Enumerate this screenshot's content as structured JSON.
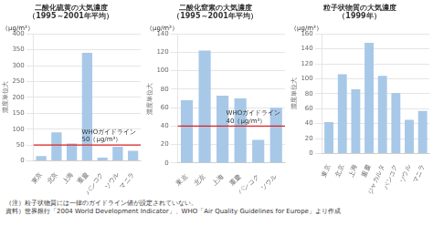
{
  "chart_data": [
    {
      "type": "bar",
      "title": [
        "二酸化硫黄の大気濃度",
        "（1995～2001年平均）"
      ],
      "y_label": "濃度単位大",
      "units": "（μg/m³）",
      "categories": [
        "東京",
        "北京",
        "上海",
        "重慶",
        "バンコク",
        "ソウル",
        "マニラ"
      ],
      "values": [
        15,
        90,
        55,
        340,
        10,
        45,
        32
      ],
      "color": "#a8c8e8",
      "guideline": {
        "value": 50,
        "label": [
          "WHOガイドライン",
          "50（μg/m³）"
        ],
        "color": "#dd2222"
      },
      "ylim": [
        0,
        400
      ],
      "yticks": [
        0,
        50,
        100,
        150,
        200,
        250,
        300,
        350,
        400
      ],
      "grid": true
    },
    {
      "type": "bar",
      "title": [
        "二酸化窒素の大気濃度",
        "（1995～2001年平均）"
      ],
      "y_label": "濃度単位大",
      "units": "（μg/m³）",
      "categories": [
        "東京",
        "北京",
        "上海",
        "重慶",
        "バンコク",
        "ソウル"
      ],
      "values": [
        68,
        122,
        73,
        70,
        25,
        60
      ],
      "color": "#a8c8e8",
      "guideline": {
        "value": 40,
        "label": [
          "WHOガイドライン",
          "40（μg/m³）"
        ],
        "color": "#dd2222"
      },
      "ylim": [
        0,
        140
      ],
      "yticks": [
        0,
        20,
        40,
        60,
        80,
        100,
        120,
        140
      ],
      "grid": true
    },
    {
      "type": "bar",
      "title": [
        "粒子状物質の大気濃度",
        "（1999年）"
      ],
      "y_label": "濃度単位大",
      "units": "（μg/m³）",
      "categories": [
        "東京",
        "北京",
        "上海",
        "重慶",
        "ジャカルタ",
        "バンコク",
        "ソウル",
        "マニラ"
      ],
      "values": [
        42,
        106,
        86,
        148,
        104,
        81,
        45,
        57
      ],
      "color": "#a8c8e8",
      "ylim": [
        0,
        160
      ],
      "yticks": [
        0,
        20,
        40,
        60,
        80,
        100,
        120,
        140,
        160
      ],
      "grid": true
    }
  ],
  "note": "（注）粒子状物質には一律のガイドライン値が設定されていない。",
  "source": "資料）世界銀行「2004 World Development Indicator」、WHO「Air Quality Guidelines for Europe」より作成"
}
